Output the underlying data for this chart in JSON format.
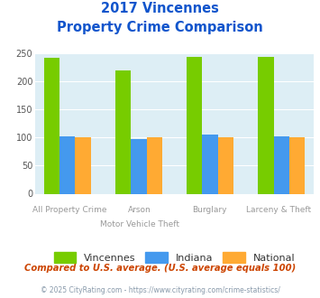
{
  "title_line1": "2017 Vincennes",
  "title_line2": "Property Crime Comparison",
  "cat_labels_row1": [
    "All Property Crime",
    "Arson",
    "Burglary",
    "Larceny & Theft"
  ],
  "cat_labels_row2": [
    "",
    "Motor Vehicle Theft",
    "",
    ""
  ],
  "vincennes": [
    242,
    220,
    245,
    245
  ],
  "indiana": [
    102,
    98,
    105,
    102
  ],
  "national": [
    100,
    100,
    100,
    100
  ],
  "colors": {
    "vincennes": "#77cc00",
    "indiana": "#4499ee",
    "national": "#ffaa33"
  },
  "ylim": [
    0,
    250
  ],
  "yticks": [
    0,
    50,
    100,
    150,
    200,
    250
  ],
  "background_color": "#ddeef5",
  "title_color": "#1155cc",
  "xlabel_color": "#999999",
  "footer1": "Compared to U.S. average. (U.S. average equals 100)",
  "footer2": "© 2025 CityRating.com - https://www.cityrating.com/crime-statistics/",
  "footer1_color": "#cc4400",
  "footer2_color": "#8899aa"
}
